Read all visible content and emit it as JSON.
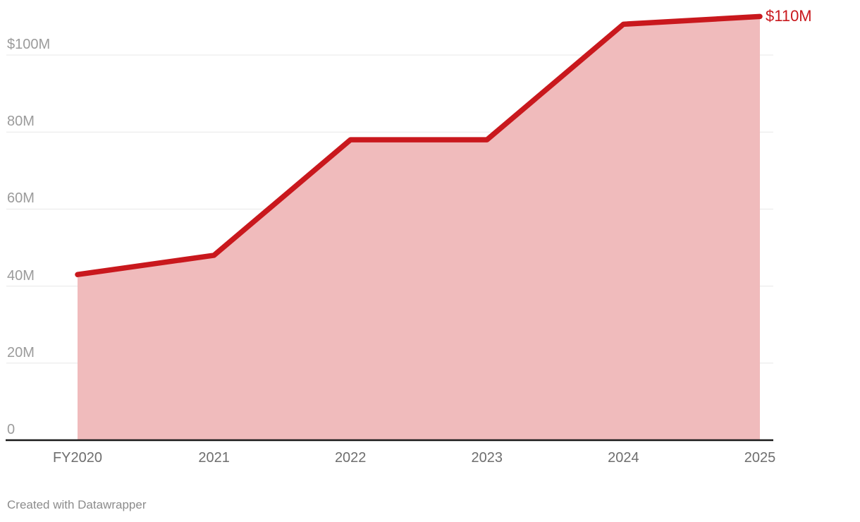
{
  "chart_data": {
    "type": "area",
    "title": "",
    "categories": [
      "FY2020",
      "2021",
      "2022",
      "2023",
      "2024",
      "2025"
    ],
    "values": [
      43,
      48,
      78,
      78,
      108,
      110
    ],
    "series": [
      {
        "name": "value",
        "values": [
          43,
          48,
          78,
          78,
          108,
          110
        ]
      }
    ],
    "y_ticks": [
      {
        "value": 0,
        "label": "0"
      },
      {
        "value": 20,
        "label": "20M"
      },
      {
        "value": 40,
        "label": "40M"
      },
      {
        "value": 60,
        "label": "60M"
      },
      {
        "value": 80,
        "label": "80M"
      },
      {
        "value": 100,
        "label": "$100M"
      }
    ],
    "ylim": [
      0,
      114
    ],
    "xlabel": "",
    "ylabel": "",
    "grid": "horizontal",
    "legend": "none",
    "end_label": "$110M",
    "colors": {
      "line": "#c9181d",
      "fill": "#f0bbbc",
      "gridline": "#e8e8e8",
      "axis": "#1a1a1a",
      "y_tick_text": "#9b9b9b",
      "x_tick_text": "#6e6e6e",
      "end_label_text": "#c9181d"
    }
  },
  "footer": {
    "credit": "Created with Datawrapper"
  }
}
